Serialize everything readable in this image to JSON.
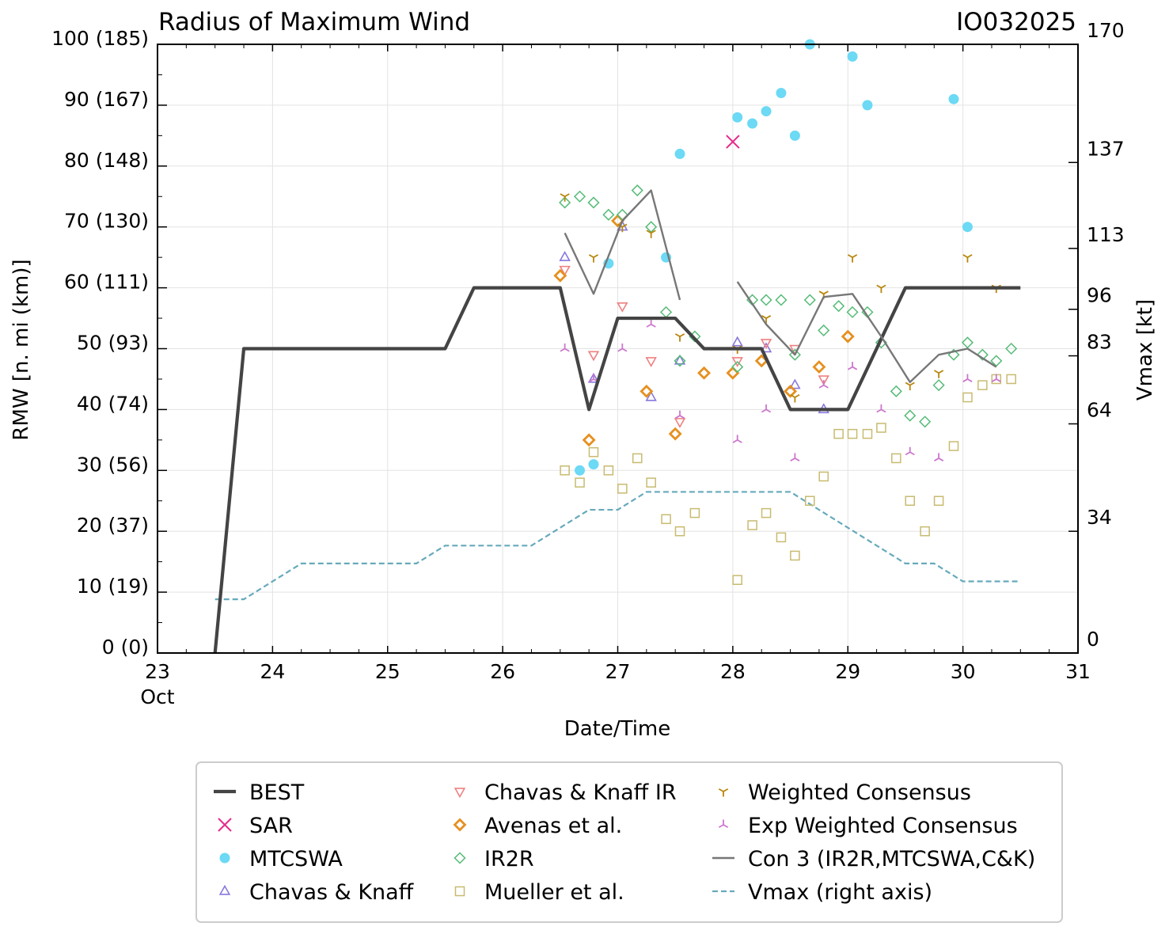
{
  "chart_data": {
    "type": "scatter",
    "title": "Radius of Maximum Wind",
    "storm_id": "IO032025",
    "xlabel": "Date/Time",
    "ylabel": "RMW [n. mi (km)]",
    "y2label": "Vmax [kt]",
    "xlim": [
      23,
      31
    ],
    "ylim": [
      0,
      100
    ],
    "y2lim": [
      0,
      170
    ],
    "x_ticks": [
      {
        "value": 23,
        "label": "23",
        "sublabel": "Oct"
      },
      {
        "value": 24,
        "label": "24"
      },
      {
        "value": 25,
        "label": "25"
      },
      {
        "value": 26,
        "label": "26"
      },
      {
        "value": 27,
        "label": "27"
      },
      {
        "value": 28,
        "label": "28"
      },
      {
        "value": 29,
        "label": "29"
      },
      {
        "value": 30,
        "label": "30"
      },
      {
        "value": 31,
        "label": "31"
      }
    ],
    "y_ticks": [
      {
        "value": 0,
        "label": "0 (0)"
      },
      {
        "value": 10,
        "label": "10 (19)"
      },
      {
        "value": 20,
        "label": "20 (37)"
      },
      {
        "value": 30,
        "label": "30 (56)"
      },
      {
        "value": 40,
        "label": "40 (74)"
      },
      {
        "value": 50,
        "label": "50 (93)"
      },
      {
        "value": 60,
        "label": "60 (111)"
      },
      {
        "value": 70,
        "label": "70 (130)"
      },
      {
        "value": 80,
        "label": "80 (148)"
      },
      {
        "value": 90,
        "label": "90 (167)"
      },
      {
        "value": 100,
        "label": "100 (185)"
      }
    ],
    "y2_ticks": [
      {
        "value": 0,
        "label": "0"
      },
      {
        "value": 34,
        "label": "34"
      },
      {
        "value": 64,
        "label": "64"
      },
      {
        "value": 83,
        "label": "83"
      },
      {
        "value": 96,
        "label": "96"
      },
      {
        "value": 113,
        "label": "113"
      },
      {
        "value": 137,
        "label": "137"
      },
      {
        "value": 170,
        "label": "170"
      }
    ],
    "grid": true,
    "legend_position": "below",
    "series": [
      {
        "name": "BEST",
        "kind": "line",
        "color": "#444444",
        "x": [
          23.5,
          23.75,
          25.5,
          25.75,
          26.5,
          26.75,
          27.0,
          27.5,
          27.75,
          28.25,
          28.5,
          29.0,
          29.5,
          30.5
        ],
        "y": [
          0,
          50,
          50,
          60,
          60,
          40,
          55,
          55,
          50,
          50,
          40,
          40,
          60,
          60
        ]
      },
      {
        "name": "SAR",
        "kind": "marker",
        "marker": "x",
        "color": "#e7298a",
        "x": [
          28.0
        ],
        "y": [
          84
        ]
      },
      {
        "name": "MTCSWA",
        "kind": "marker",
        "marker": "dot",
        "color": "#6cd9f5",
        "x": [
          26.67,
          26.79,
          26.92,
          27.42,
          27.54,
          28.04,
          28.17,
          28.29,
          28.42,
          28.54,
          28.67,
          29.04,
          29.17,
          29.92,
          30.04
        ],
        "y": [
          30,
          31,
          64,
          65,
          82,
          88,
          87,
          89,
          92,
          85,
          100,
          98,
          90,
          91,
          70
        ]
      },
      {
        "name": "Chavas & Knaff",
        "kind": "marker",
        "marker": "triangle-up",
        "color": "#8877dd",
        "x": [
          26.54,
          26.79,
          27.04,
          27.29,
          27.54,
          28.04,
          28.29,
          28.54,
          28.79
        ],
        "y": [
          65,
          45,
          70,
          42,
          48,
          51,
          50,
          44,
          40
        ]
      },
      {
        "name": "Chavas & Knaff IR",
        "kind": "marker",
        "marker": "triangle-down",
        "color": "#ee8080",
        "x": [
          26.54,
          26.79,
          27.04,
          27.29,
          27.54,
          28.04,
          28.29,
          28.54,
          28.79
        ],
        "y": [
          63,
          49,
          57,
          48,
          38,
          48,
          51,
          50,
          45
        ]
      },
      {
        "name": "Avenas et al.",
        "kind": "marker",
        "marker": "diamond",
        "color": "#e69020",
        "x": [
          26.5,
          26.75,
          27.0,
          27.25,
          27.5,
          27.75,
          28.0,
          28.25,
          28.5,
          28.75,
          29.0
        ],
        "y": [
          62,
          35,
          71,
          43,
          36,
          46,
          46,
          48,
          43,
          47,
          52
        ]
      },
      {
        "name": "IR2R",
        "kind": "marker",
        "marker": "diamond-open",
        "color": "#55bb77",
        "x": [
          26.54,
          26.67,
          26.79,
          26.92,
          27.04,
          27.17,
          27.29,
          27.42,
          27.54,
          27.67,
          28.04,
          28.17,
          28.29,
          28.42,
          28.54,
          28.67,
          28.79,
          28.92,
          29.04,
          29.17,
          29.29,
          29.42,
          29.54,
          29.67,
          29.79,
          29.92,
          30.04,
          30.17,
          30.29,
          30.42
        ],
        "y": [
          74,
          75,
          74,
          72,
          72,
          76,
          70,
          56,
          48,
          52,
          47,
          58,
          58,
          58,
          49,
          58,
          53,
          57,
          56,
          56,
          51,
          43,
          39,
          38,
          44,
          49,
          51,
          49,
          48,
          50
        ]
      },
      {
        "name": "Mueller et al.",
        "kind": "marker",
        "marker": "square-open",
        "color": "#c8bb70",
        "x": [
          26.54,
          26.67,
          26.79,
          26.92,
          27.04,
          27.17,
          27.29,
          27.42,
          27.54,
          27.67,
          28.04,
          28.17,
          28.29,
          28.42,
          28.54,
          28.67,
          28.79,
          28.92,
          29.04,
          29.17,
          29.29,
          29.42,
          29.54,
          29.67,
          29.79,
          29.92,
          30.04,
          30.17,
          30.29,
          30.42
        ],
        "y": [
          30,
          28,
          33,
          30,
          27,
          32,
          28,
          22,
          20,
          23,
          12,
          21,
          23,
          19,
          16,
          25,
          29,
          36,
          36,
          36,
          37,
          32,
          25,
          20,
          25,
          34,
          42,
          44,
          45,
          45
        ]
      },
      {
        "name": "Weighted Consensus",
        "kind": "marker",
        "marker": "tri-down",
        "color": "#b8860b",
        "x": [
          26.54,
          26.79,
          27.04,
          27.29,
          27.54,
          28.04,
          28.29,
          28.54,
          28.79,
          29.04,
          29.29,
          29.54,
          29.79,
          30.04,
          30.29
        ],
        "y": [
          75,
          65,
          70,
          69,
          52,
          50,
          55,
          42,
          59,
          65,
          60,
          44,
          46,
          65,
          60
        ]
      },
      {
        "name": "Exp Weighted Consensus",
        "kind": "marker",
        "marker": "tri-up",
        "color": "#cc77cc",
        "x": [
          26.54,
          26.79,
          27.04,
          27.29,
          27.54,
          28.04,
          28.29,
          28.54,
          28.79,
          29.04,
          29.29,
          29.54,
          29.79,
          30.04,
          30.29
        ],
        "y": [
          50,
          45,
          50,
          54,
          39,
          35,
          40,
          32,
          44,
          47,
          40,
          33,
          32,
          45,
          45
        ]
      },
      {
        "name": "Con 3 (IR2R,MTCSWA,C&K)",
        "kind": "line",
        "color": "#777777",
        "segments": [
          {
            "x": [
              26.54,
              26.79,
              27.04,
              27.29,
              27.54
            ],
            "y": [
              69,
              59,
              71,
              76,
              58
            ]
          },
          {
            "x": [
              28.04,
              28.29,
              28.54,
              28.79,
              29.04,
              29.29,
              29.54,
              29.79,
              30.04,
              30.29
            ],
            "y": [
              61,
              54,
              49,
              58.5,
              59,
              52,
              44.5,
              49,
              50,
              47
            ]
          }
        ]
      },
      {
        "name": "Vmax (right axis)",
        "kind": "line",
        "style": "dashed",
        "axis": "right",
        "color": "#66aabb",
        "x": [
          23.5,
          23.75,
          24.25,
          25.25,
          25.5,
          26.25,
          26.75,
          27.0,
          27.25,
          28.5,
          29.0,
          29.5,
          29.75,
          30.0,
          30.5
        ],
        "y": [
          15,
          15,
          25,
          25,
          30,
          30,
          40,
          40,
          45,
          45,
          35,
          25,
          25,
          20,
          20
        ]
      }
    ]
  }
}
